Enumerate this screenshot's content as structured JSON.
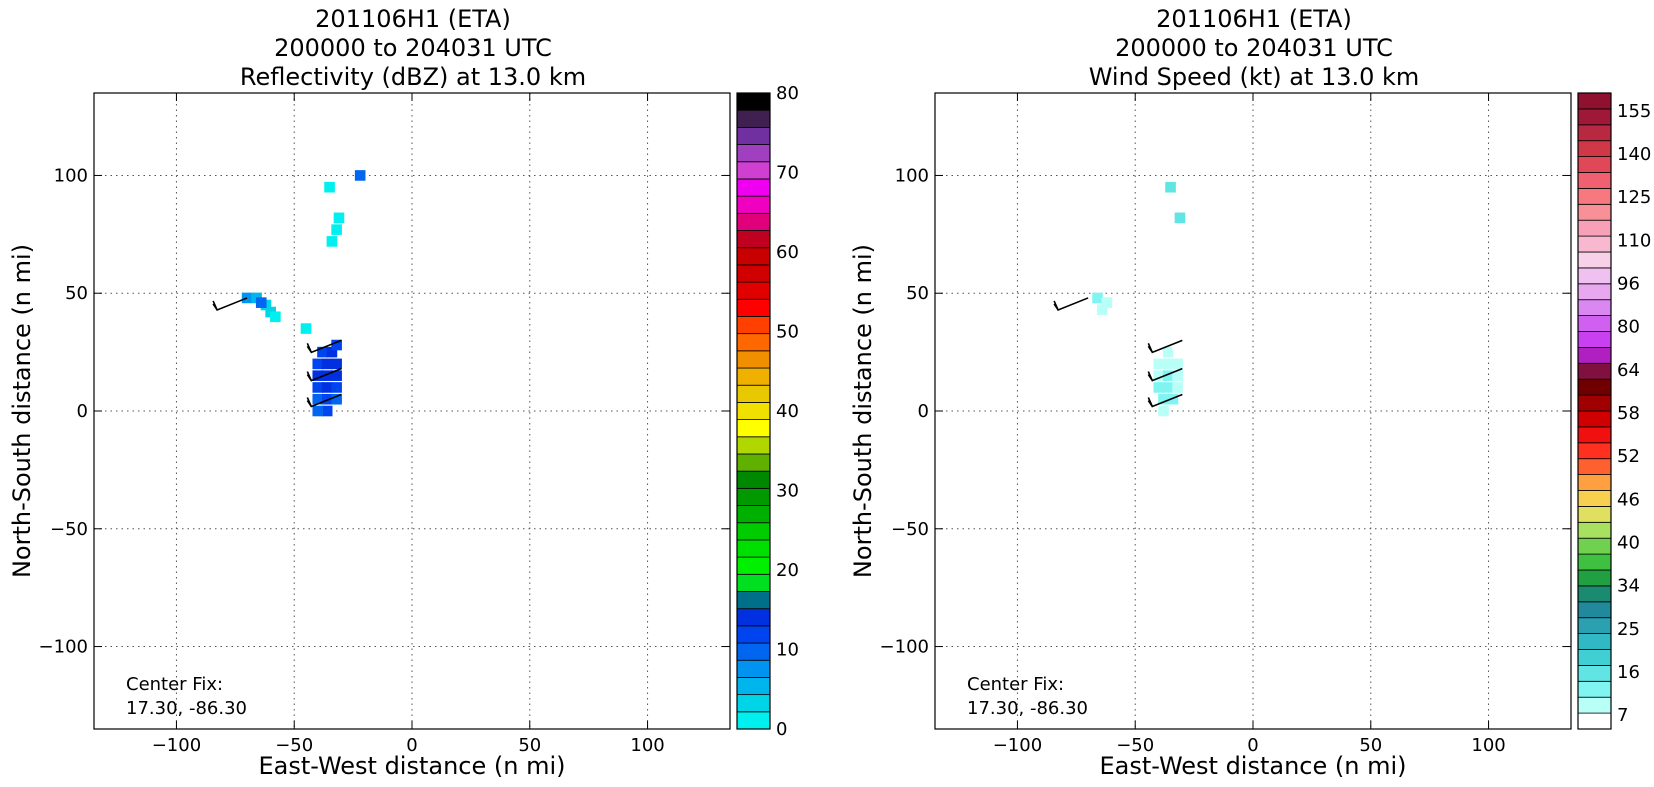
{
  "panels": [
    {
      "title_lines": [
        "201106H1 (ETA)",
        "200000 to 204031 UTC",
        "Reflectivity (dBZ) at 13.0 km"
      ],
      "xlabel": "East-West distance (n mi)",
      "ylabel": "North-South distance (n mi)",
      "center_fix_label": "Center Fix:",
      "center_fix_value": "17.30, -86.30",
      "colorbar": {
        "tick_labels": [
          "0",
          "10",
          "20",
          "30",
          "40",
          "50",
          "60",
          "70",
          "80"
        ],
        "colors": [
          "#00f0f0",
          "#00d5e8",
          "#00b5ec",
          "#0094f0",
          "#0066f0",
          "#0044f0",
          "#0030e0",
          "#00708a",
          "#00e020",
          "#00f000",
          "#00e000",
          "#00cc00",
          "#00b000",
          "#009a00",
          "#008800",
          "#60b000",
          "#b0d800",
          "#ffff00",
          "#f0e000",
          "#e8c800",
          "#f0b000",
          "#f09000",
          "#ff6800",
          "#ff4000",
          "#ff0000",
          "#e00000",
          "#d00000",
          "#c80000",
          "#c00020",
          "#e0007c",
          "#f000c0",
          "#f000f0",
          "#d040d0",
          "#a040c0",
          "#7030a0",
          "#402050",
          "#000000"
        ]
      }
    },
    {
      "title_lines": [
        "201106H1 (ETA)",
        "200000 to 204031 UTC",
        "Wind Speed (kt) at 13.0 km"
      ],
      "xlabel": "East-West distance (n mi)",
      "ylabel": "North-South distance (n mi)",
      "center_fix_label": "Center Fix:",
      "center_fix_value": "17.30, -86.30",
      "colorbar": {
        "tick_labels": [
          "7",
          "16",
          "25",
          "34",
          "40",
          "46",
          "52",
          "58",
          "64",
          "80",
          "96",
          "110",
          "125",
          "140",
          "155"
        ],
        "colors": [
          "#ffffff",
          "#b8fff8",
          "#80f4f0",
          "#60e4e4",
          "#40d0d4",
          "#30b8c4",
          "#2aa0b0",
          "#208a9c",
          "#1a8a70",
          "#20a040",
          "#40c040",
          "#70d050",
          "#a8e060",
          "#e0e060",
          "#f8d050",
          "#ffa040",
          "#ff6030",
          "#ff3020",
          "#f01010",
          "#d00000",
          "#a00000",
          "#700000",
          "#801040",
          "#b020c0",
          "#c840f0",
          "#d060f0",
          "#d888f0",
          "#e8a8f0",
          "#f0c0f0",
          "#f8d0e8",
          "#f8b8d0",
          "#f8a0b8",
          "#f89098",
          "#f87880",
          "#f06070",
          "#e04858",
          "#d03848",
          "#b82840",
          "#a01838",
          "#901030"
        ]
      }
    }
  ],
  "chart_data": [
    {
      "type": "heatmap",
      "title": "201106H1 (ETA) 200000 to 204031 UTC Reflectivity (dBZ) at 13.0 km",
      "xlabel": "East-West distance (n mi)",
      "ylabel": "North-South distance (n mi)",
      "xlim": [
        -135,
        135
      ],
      "ylim": [
        -135,
        135
      ],
      "xticks": [
        -100,
        -50,
        0,
        50,
        100
      ],
      "yticks": [
        -100,
        -50,
        0,
        50,
        100
      ],
      "grid": true,
      "colorbar": {
        "label": "dBZ",
        "range": [
          0,
          80
        ],
        "ticks": [
          0,
          10,
          20,
          30,
          40,
          50,
          60,
          70,
          80
        ]
      },
      "cells": [
        {
          "x": -40,
          "y": 5,
          "value": 10
        },
        {
          "x": -36,
          "y": 5,
          "value": 12
        },
        {
          "x": -32,
          "y": 5,
          "value": 10
        },
        {
          "x": -40,
          "y": 10,
          "value": 12
        },
        {
          "x": -36,
          "y": 10,
          "value": 13
        },
        {
          "x": -32,
          "y": 10,
          "value": 12
        },
        {
          "x": -40,
          "y": 15,
          "value": 13
        },
        {
          "x": -36,
          "y": 15,
          "value": 14
        },
        {
          "x": -32,
          "y": 15,
          "value": 13
        },
        {
          "x": -40,
          "y": 20,
          "value": 12
        },
        {
          "x": -36,
          "y": 20,
          "value": 13
        },
        {
          "x": -32,
          "y": 20,
          "value": 13
        },
        {
          "x": -38,
          "y": 25,
          "value": 12
        },
        {
          "x": -34,
          "y": 25,
          "value": 13
        },
        {
          "x": -32,
          "y": 28,
          "value": 12
        },
        {
          "x": -36,
          "y": 0,
          "value": 11
        },
        {
          "x": -40,
          "y": 0,
          "value": 9
        },
        {
          "x": -70,
          "y": 48,
          "value": 8
        },
        {
          "x": -66,
          "y": 48,
          "value": 6
        },
        {
          "x": -62,
          "y": 45,
          "value": 4
        },
        {
          "x": -60,
          "y": 42,
          "value": 3
        },
        {
          "x": -64,
          "y": 46,
          "value": 9
        },
        {
          "x": -58,
          "y": 40,
          "value": 2
        },
        {
          "x": -31,
          "y": 82,
          "value": 1
        },
        {
          "x": -32,
          "y": 77,
          "value": 1
        },
        {
          "x": -34,
          "y": 72,
          "value": 1
        },
        {
          "x": -35,
          "y": 95,
          "value": 1
        },
        {
          "x": -22,
          "y": 100,
          "value": 10
        },
        {
          "x": -45,
          "y": 35,
          "value": 2
        }
      ],
      "wind_barbs": [
        {
          "x": -70,
          "y": 48
        },
        {
          "x": -30,
          "y": 30
        },
        {
          "x": -30,
          "y": 18
        },
        {
          "x": -30,
          "y": 7
        }
      ]
    },
    {
      "type": "heatmap",
      "title": "201106H1 (ETA) 200000 to 204031 UTC Wind Speed (kt) at 13.0 km",
      "xlabel": "East-West distance (n mi)",
      "ylabel": "North-South distance (n mi)",
      "xlim": [
        -135,
        135
      ],
      "ylim": [
        -135,
        135
      ],
      "xticks": [
        -100,
        -50,
        0,
        50,
        100
      ],
      "yticks": [
        -100,
        -50,
        0,
        50,
        100
      ],
      "grid": true,
      "colorbar": {
        "label": "kt",
        "range": [
          7,
          160
        ],
        "ticks": [
          7,
          16,
          25,
          34,
          40,
          46,
          52,
          58,
          64,
          80,
          96,
          110,
          125,
          140,
          155
        ]
      },
      "cells": [
        {
          "x": -38,
          "y": 5,
          "value": 18
        },
        {
          "x": -34,
          "y": 5,
          "value": 16
        },
        {
          "x": -40,
          "y": 10,
          "value": 16
        },
        {
          "x": -36,
          "y": 10,
          "value": 18
        },
        {
          "x": -32,
          "y": 10,
          "value": 14
        },
        {
          "x": -40,
          "y": 15,
          "value": 14
        },
        {
          "x": -36,
          "y": 15,
          "value": 16
        },
        {
          "x": -32,
          "y": 15,
          "value": 12
        },
        {
          "x": -40,
          "y": 20,
          "value": 12
        },
        {
          "x": -36,
          "y": 20,
          "value": 14
        },
        {
          "x": -32,
          "y": 20,
          "value": 12
        },
        {
          "x": -36,
          "y": 25,
          "value": 12
        },
        {
          "x": -32,
          "y": 28,
          "value": 10
        },
        {
          "x": -38,
          "y": 0,
          "value": 14
        },
        {
          "x": -66,
          "y": 48,
          "value": 16
        },
        {
          "x": -62,
          "y": 46,
          "value": 14
        },
        {
          "x": -64,
          "y": 43,
          "value": 12
        },
        {
          "x": -35,
          "y": 95,
          "value": 22
        },
        {
          "x": -31,
          "y": 82,
          "value": 22
        }
      ],
      "wind_barbs": [
        {
          "x": -70,
          "y": 48
        },
        {
          "x": -30,
          "y": 30
        },
        {
          "x": -30,
          "y": 18
        },
        {
          "x": -30,
          "y": 7
        }
      ]
    }
  ]
}
